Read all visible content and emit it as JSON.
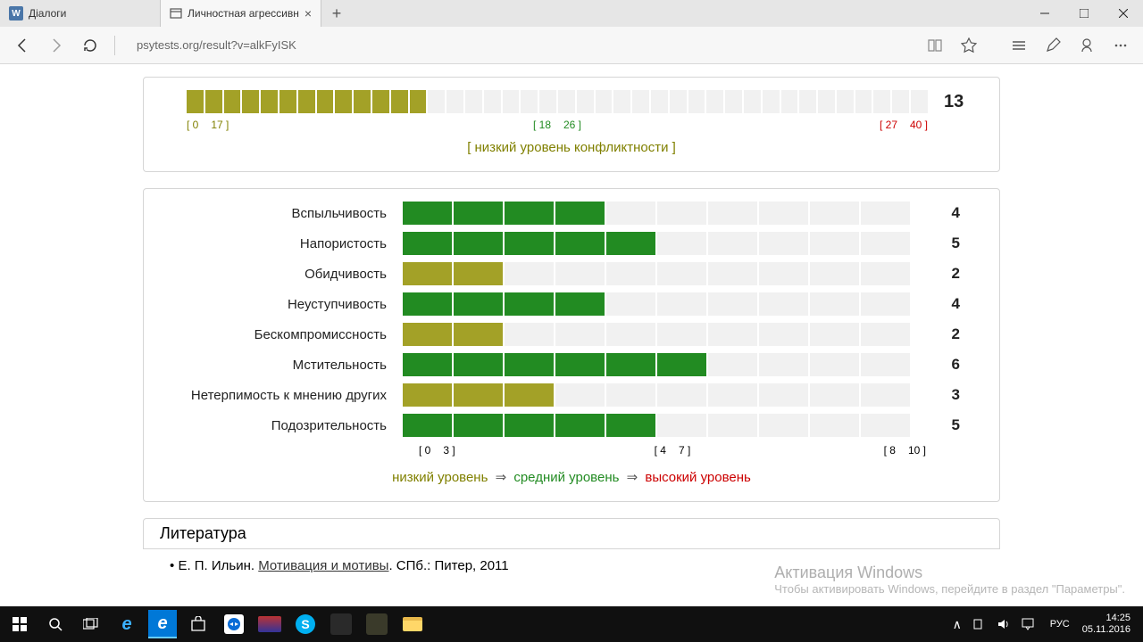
{
  "browser": {
    "tabs": [
      {
        "title": "Діалоги",
        "active": false
      },
      {
        "title": "Личностная агрессивн",
        "active": true
      }
    ],
    "url": "psytests.org/result?v=alkFyISK"
  },
  "summary_chart": {
    "type": "bar",
    "total_cells": 40,
    "filled": 13,
    "fill_color_class": "olive",
    "score": "13",
    "ticks": [
      {
        "text": "[ 0",
        "cls": "o"
      },
      {
        "text": "17 ]",
        "cls": "o"
      },
      {
        "text": "[ 18",
        "cls": "g"
      },
      {
        "text": "26 ]",
        "cls": "g"
      },
      {
        "text": "[ 27",
        "cls": "r"
      },
      {
        "text": "40 ]",
        "cls": "r"
      }
    ],
    "caption": "[ низкий уровень конфликтности ]"
  },
  "scales_chart": {
    "type": "bar",
    "total_cells": 10,
    "rows": [
      {
        "label": "Вспыльчивость",
        "value": 4,
        "color_class": "green",
        "score": "4"
      },
      {
        "label": "Напористость",
        "value": 5,
        "color_class": "green",
        "score": "5"
      },
      {
        "label": "Обидчивость",
        "value": 2,
        "color_class": "olive",
        "score": "2"
      },
      {
        "label": "Неуступчивость",
        "value": 4,
        "color_class": "green",
        "score": "4"
      },
      {
        "label": "Бескомпромиссность",
        "value": 2,
        "color_class": "olive",
        "score": "2"
      },
      {
        "label": "Мстительность",
        "value": 6,
        "color_class": "green",
        "score": "6"
      },
      {
        "label": "Нетерпимость к мнению других",
        "value": 3,
        "color_class": "olive",
        "score": "3"
      },
      {
        "label": "Подозрительность",
        "value": 5,
        "color_class": "green",
        "score": "5"
      }
    ],
    "ticks": [
      {
        "text": "[ 0",
        "cls": "o"
      },
      {
        "text": "3 ]",
        "cls": "o"
      },
      {
        "text": "[ 4",
        "cls": "g"
      },
      {
        "text": "7 ]",
        "cls": "g"
      },
      {
        "text": "[ 8",
        "cls": "r"
      },
      {
        "text": "10 ]",
        "cls": "r"
      }
    ],
    "legend": {
      "low": "низкий уровень",
      "mid": "средний уровень",
      "high": "высокий уровень"
    }
  },
  "literature": {
    "header": "Литература",
    "bullet": "•",
    "author": "Е. П. Ильин. ",
    "title": "Мотивация и мотивы",
    "rest": ". СПб.: Питер, 2011"
  },
  "watermark": {
    "line1": "Активация Windows",
    "line2": "Чтобы активировать Windows, перейдите в раздел \"Параметры\"."
  },
  "taskbar": {
    "lang": "РУС",
    "time": "14:25",
    "date": "05.11.2016"
  },
  "colors": {
    "olive": "#a3a127",
    "green": "#228b22",
    "empty": "#f1f1f1",
    "text_olive": "#808000",
    "text_green": "#228b22",
    "text_red": "#cc0000"
  }
}
